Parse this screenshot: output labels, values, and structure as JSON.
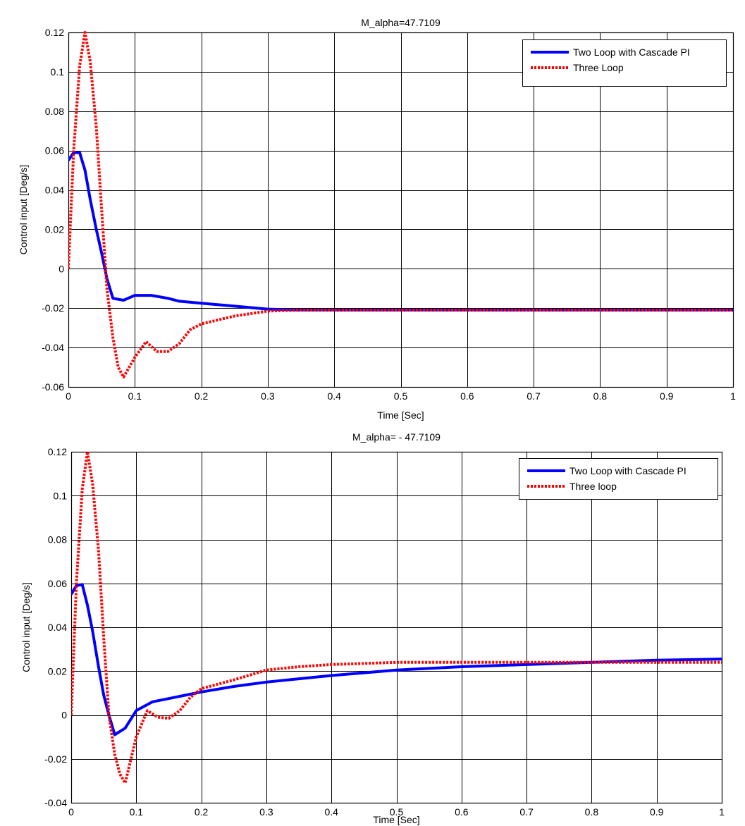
{
  "chart_data": [
    {
      "type": "line",
      "title": "M_alpha=47.7109",
      "xlabel": "Time [Sec]",
      "ylabel": "Control input [Deg/s]",
      "xlim": [
        0,
        1
      ],
      "ylim": [
        -0.06,
        0.12
      ],
      "xticks": [
        "0",
        "0.1",
        "0.2",
        "0.3",
        "0.4",
        "0.5",
        "0.6",
        "0.7",
        "0.8",
        "0.9",
        "1"
      ],
      "yticks": [
        "-0.06",
        "-0.04",
        "-0.02",
        "0",
        "0.02",
        "0.04",
        "0.06",
        "0.08",
        "0.1",
        "0.12"
      ],
      "grid": true,
      "legend_position": "top-right",
      "series": [
        {
          "name": "Two Loop with Cascade PI",
          "color": "#0000ff",
          "style": "solid",
          "x": [
            0,
            0.008,
            0.017,
            0.025,
            0.033,
            0.042,
            0.05,
            0.058,
            0.067,
            0.083,
            0.1,
            0.125,
            0.15,
            0.167,
            0.2,
            0.25,
            0.3,
            0.35,
            0.4,
            0.5,
            0.6,
            0.7,
            0.8,
            0.9,
            1.0
          ],
          "y": [
            0.055,
            0.059,
            0.059,
            0.05,
            0.035,
            0.02,
            0.008,
            -0.005,
            -0.015,
            -0.016,
            -0.0135,
            -0.0135,
            -0.015,
            -0.0165,
            -0.0175,
            -0.019,
            -0.0205,
            -0.021,
            -0.021,
            -0.021,
            -0.021,
            -0.021,
            -0.021,
            -0.021,
            -0.021
          ]
        },
        {
          "name": "Three Loop",
          "color": "#ff0000",
          "style": "dotted",
          "x": [
            0,
            0.008,
            0.017,
            0.025,
            0.033,
            0.042,
            0.05,
            0.058,
            0.067,
            0.075,
            0.083,
            0.1,
            0.117,
            0.133,
            0.15,
            0.167,
            0.183,
            0.2,
            0.25,
            0.3,
            0.35,
            0.4,
            0.5,
            0.6,
            0.7,
            0.8,
            0.9,
            1.0
          ],
          "y": [
            0.0,
            0.06,
            0.103,
            0.12,
            0.105,
            0.072,
            0.03,
            -0.01,
            -0.035,
            -0.05,
            -0.055,
            -0.045,
            -0.037,
            -0.042,
            -0.042,
            -0.038,
            -0.031,
            -0.028,
            -0.024,
            -0.0215,
            -0.021,
            -0.021,
            -0.021,
            -0.021,
            -0.021,
            -0.021,
            -0.021,
            -0.021
          ]
        }
      ]
    },
    {
      "type": "line",
      "title": "M_alpha= - 47.7109",
      "xlabel": "Time [Sec]",
      "ylabel": "Control input [Deg/s]",
      "xlim": [
        0,
        1
      ],
      "ylim": [
        -0.04,
        0.12
      ],
      "xticks": [
        "0",
        "0.1",
        "0.2",
        "0.3",
        "0.4",
        "0.5",
        "0.6",
        "0.7",
        "0.8",
        "0.9",
        "1"
      ],
      "yticks": [
        "-0.04",
        "-0.02",
        "0",
        "0.02",
        "0.04",
        "0.06",
        "0.08",
        "0.1",
        "0.12"
      ],
      "grid": true,
      "legend_position": "top-right",
      "series": [
        {
          "name": "Two Loop with Cascade PI",
          "color": "#0000ff",
          "style": "solid",
          "x": [
            0,
            0.008,
            0.017,
            0.025,
            0.033,
            0.042,
            0.05,
            0.058,
            0.067,
            0.083,
            0.1,
            0.125,
            0.15,
            0.167,
            0.2,
            0.25,
            0.3,
            0.35,
            0.4,
            0.5,
            0.6,
            0.7,
            0.8,
            0.9,
            1.0
          ],
          "y": [
            0.055,
            0.059,
            0.0595,
            0.05,
            0.038,
            0.022,
            0.009,
            0.0,
            -0.009,
            -0.006,
            0.002,
            0.006,
            0.0075,
            0.0085,
            0.0105,
            0.013,
            0.015,
            0.0165,
            0.018,
            0.0205,
            0.022,
            0.023,
            0.024,
            0.025,
            0.0255
          ]
        },
        {
          "name": "Three loop",
          "color": "#ff0000",
          "style": "dotted",
          "x": [
            0,
            0.008,
            0.017,
            0.025,
            0.033,
            0.042,
            0.05,
            0.058,
            0.067,
            0.075,
            0.083,
            0.1,
            0.117,
            0.133,
            0.15,
            0.167,
            0.183,
            0.2,
            0.25,
            0.3,
            0.35,
            0.4,
            0.5,
            0.6,
            0.7,
            0.8,
            0.9,
            1.0
          ],
          "y": [
            0.0,
            0.06,
            0.103,
            0.12,
            0.105,
            0.075,
            0.035,
            0.0,
            -0.018,
            -0.027,
            -0.031,
            -0.01,
            0.002,
            -0.001,
            -0.0015,
            0.002,
            0.008,
            0.012,
            0.016,
            0.0205,
            0.022,
            0.023,
            0.024,
            0.024,
            0.024,
            0.024,
            0.024,
            0.024
          ]
        }
      ]
    }
  ]
}
